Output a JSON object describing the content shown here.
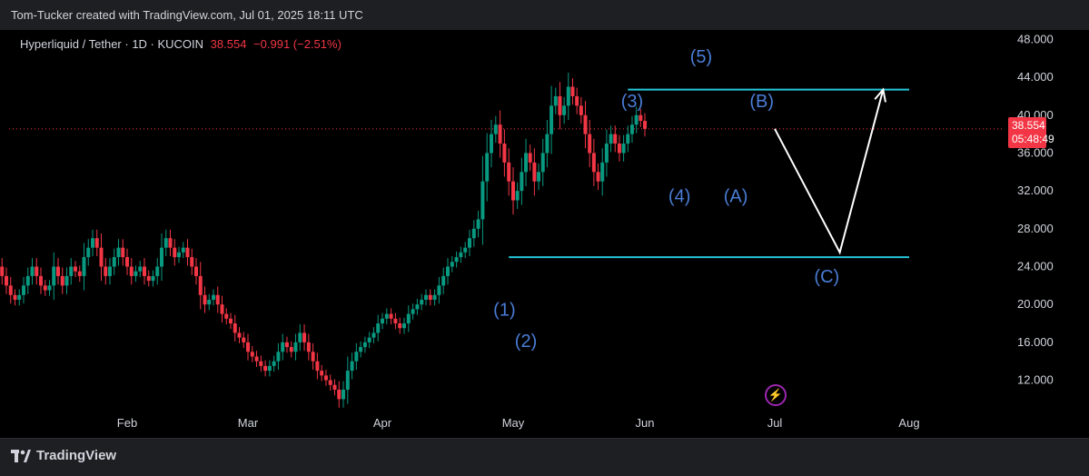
{
  "header": {
    "attribution": "Tom-Tucker created with TradingView.com, Jul 01, 2025 18:11 UTC"
  },
  "legend": {
    "symbol": "Hyperliquid / Tether · 1D · KUCOIN",
    "price": "38.554",
    "change": "−0.991 (−2.51%)"
  },
  "price_tag": {
    "price": "38.554",
    "countdown": "05:48:49"
  },
  "footer": {
    "brand": "TradingView"
  },
  "colors": {
    "up": "#089981",
    "down": "#f23645",
    "wave_label": "#4a7dd6",
    "level_line": "#26c6da",
    "projection": "#ffffff"
  },
  "chart_data": {
    "type": "candlestick",
    "y_ticks": [
      "48.000",
      "44.000",
      "40.000",
      "36.000",
      "32.000",
      "28.000",
      "24.000",
      "20.000",
      "16.000",
      "12.000"
    ],
    "x_ticks": [
      "Feb",
      "Mar",
      "Apr",
      "May",
      "Jun",
      "Jul",
      "Aug"
    ],
    "y_range": [
      8.5,
      49
    ],
    "last_price": 38.554,
    "close_series": {
      "start": "2025-01-01",
      "values": [
        25,
        24,
        23,
        22,
        21,
        20.5,
        21,
        22,
        23,
        24,
        23,
        22,
        21.5,
        22,
        24,
        23,
        22,
        23,
        24,
        23.5,
        23,
        25,
        26,
        27,
        26,
        24,
        23,
        24,
        25,
        26,
        25,
        24,
        23,
        23.5,
        24,
        23,
        22.5,
        23,
        24,
        26,
        27,
        26,
        25,
        25.5,
        26,
        25,
        24,
        23,
        21,
        20,
        20.5,
        21,
        20,
        19,
        18.5,
        18,
        17,
        16.5,
        16,
        15,
        14.5,
        14,
        13.5,
        13,
        13.5,
        14,
        15,
        16,
        15.5,
        15,
        16,
        17,
        16,
        15,
        14,
        13,
        12.5,
        12,
        11.5,
        11,
        10,
        11,
        13,
        14,
        15,
        15.5,
        16,
        16.5,
        17,
        18,
        18.5,
        19,
        18.5,
        18,
        17.5,
        18,
        19,
        19.5,
        20,
        20.5,
        21,
        20.5,
        21,
        22,
        23,
        24,
        24.5,
        25,
        25.5,
        26,
        27,
        28,
        29,
        33,
        36,
        38,
        39,
        37,
        35,
        33,
        31,
        32,
        34,
        36,
        35,
        33,
        34,
        36,
        38,
        41,
        42,
        40,
        41,
        43,
        42,
        41,
        40,
        38,
        36,
        34,
        33,
        35,
        37,
        38,
        37,
        36,
        37,
        38,
        39,
        40,
        39.4,
        38.554
      ]
    },
    "waves": [
      {
        "label": "(1)",
        "x": "2025-04-29",
        "y": 19.5
      },
      {
        "label": "(2)",
        "x": "2025-05-04",
        "y": 16.2
      },
      {
        "label": "(3)",
        "x": "2025-05-29",
        "y": 41.5
      },
      {
        "label": "(4)",
        "x": "2025-06-09",
        "y": 31.5
      },
      {
        "label": "(5)",
        "x": "2025-06-14",
        "y": 46.2
      },
      {
        "label": "(A)",
        "x": "2025-06-22",
        "y": 31.5
      },
      {
        "label": "(B)",
        "x": "2025-06-28",
        "y": 41.5
      },
      {
        "label": "(C)",
        "x": "2025-07-13",
        "y": 23.0
      }
    ],
    "levels": [
      {
        "y": 42.7,
        "x_start": "2025-05-28",
        "x_end": "2025-08-01"
      },
      {
        "y": 25.0,
        "x_start": "2025-04-30",
        "x_end": "2025-08-01"
      }
    ],
    "projection": [
      {
        "x": "2025-07-01",
        "y": 38.554
      },
      {
        "x": "2025-07-16",
        "y": 25.5
      },
      {
        "x": "2025-07-26",
        "y": 42.7
      }
    ]
  }
}
